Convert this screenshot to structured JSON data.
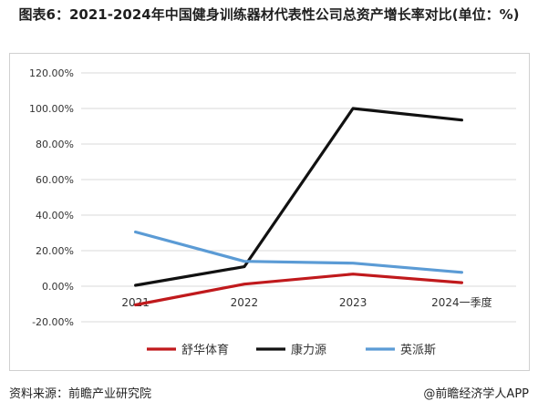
{
  "title": "图表6：2021-2024年中国健身训练器材代表性公司总资产增长率对比(单位：%)",
  "footer": {
    "source": "资料来源：前瞻产业研究院",
    "brand": "@前瞻经济学人APP"
  },
  "chart_data": {
    "type": "line",
    "title": "",
    "xlabel": "",
    "ylabel": "",
    "categories": [
      "2021",
      "2022",
      "2023",
      "2024一季度"
    ],
    "ylim": [
      -20,
      120
    ],
    "yticks": [
      -20,
      0,
      20,
      40,
      60,
      80,
      100,
      120
    ],
    "ytick_labels": [
      "-20.00%",
      "0.00%",
      "20.00%",
      "40.00%",
      "60.00%",
      "80.00%",
      "100.00%",
      "120.00%"
    ],
    "grid": true,
    "legend_position": "bottom",
    "series": [
      {
        "name": "舒华体育",
        "color": "#c0191c",
        "values": [
          -10.5,
          1.2,
          6.8,
          2.0
        ]
      },
      {
        "name": "康力源",
        "color": "#111111",
        "values": [
          0.5,
          11.0,
          100.0,
          93.5
        ]
      },
      {
        "name": "英派斯",
        "color": "#5b9bd5",
        "values": [
          30.5,
          14.0,
          13.0,
          7.8
        ]
      }
    ]
  }
}
